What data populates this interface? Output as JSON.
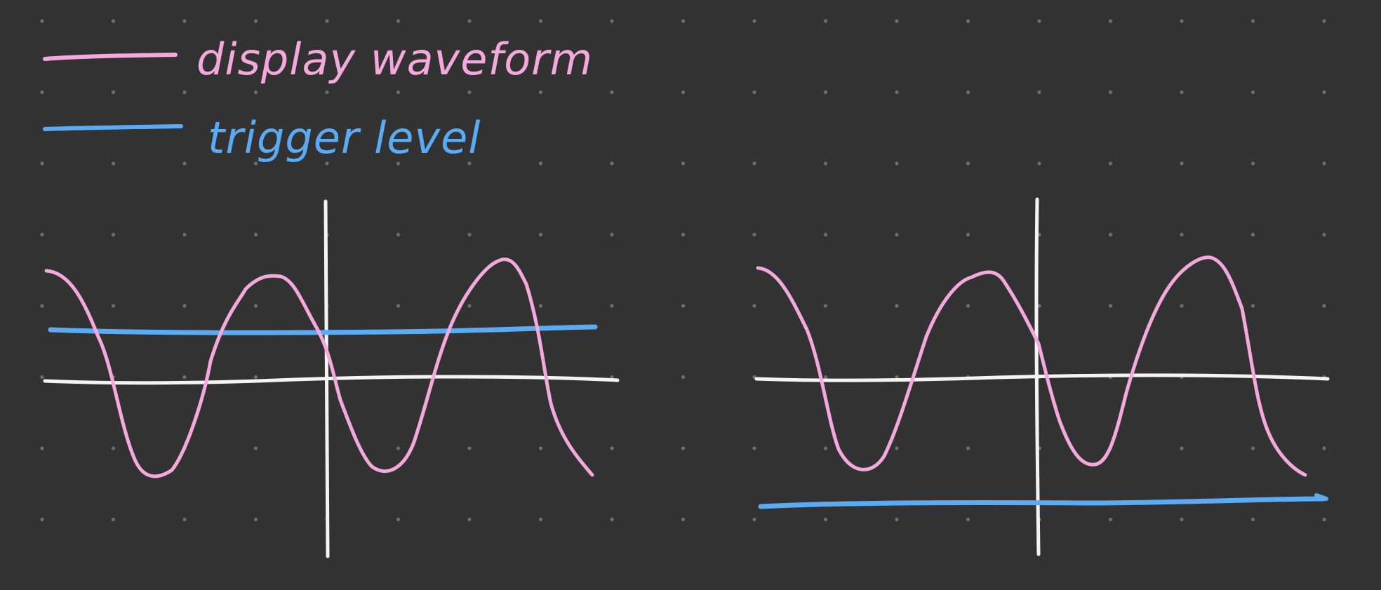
{
  "colors": {
    "background": "#323232",
    "grid_dot": "#6e6e6e",
    "axis": "#f4f4f4",
    "waveform": "#f4a9dc",
    "trigger": "#5aaaf4"
  },
  "legend": [
    {
      "label": "display waveform",
      "color_key": "waveform",
      "icon": "pink-line-swatch"
    },
    {
      "label": "trigger level",
      "color_key": "trigger",
      "icon": "blue-line-swatch"
    }
  ],
  "panels": [
    {
      "id": "left",
      "trigger_position": "crossing-waveform"
    },
    {
      "id": "right",
      "trigger_position": "below-waveform"
    }
  ]
}
